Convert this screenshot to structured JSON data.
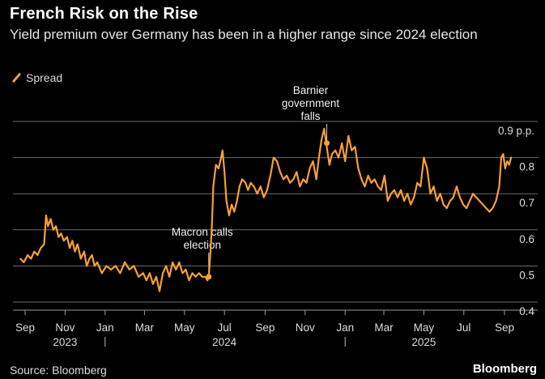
{
  "header": {
    "title": "French Risk on the Rise",
    "subtitle": "Yield premium over Germany has been in a higher range since 2024 election"
  },
  "legend": {
    "label": "Spread"
  },
  "footer": {
    "source": "Source: Bloomberg",
    "brand": "Bloomberg"
  },
  "colors": {
    "series": "#f7a035",
    "background": "#000000",
    "grid": "#6b6b6b",
    "text": "#dcdcdc"
  },
  "chart_data": {
    "type": "line",
    "title": "French Risk on the Rise",
    "subtitle": "Yield premium over Germany has been in a higher range since 2024 election",
    "xlabel": "",
    "ylabel": "",
    "ylim": [
      0.4,
      0.9
    ],
    "yticks": [
      0.4,
      0.5,
      0.6,
      0.7,
      0.8,
      0.9
    ],
    "ytick_labels": [
      "0.4",
      "0.5",
      "0.6",
      "0.7",
      "0.8",
      "0.9 p.p."
    ],
    "x_ticks": [
      {
        "date": "2023-09-01",
        "label": "Sep"
      },
      {
        "date": "2023-11-01",
        "label": "Nov"
      },
      {
        "date": "2024-01-01",
        "label": "Jan"
      },
      {
        "date": "2024-03-01",
        "label": "Mar"
      },
      {
        "date": "2024-05-01",
        "label": "May"
      },
      {
        "date": "2024-07-01",
        "label": "Jul"
      },
      {
        "date": "2024-09-01",
        "label": "Sep"
      },
      {
        "date": "2024-11-01",
        "label": "Nov"
      },
      {
        "date": "2025-01-01",
        "label": "Jan"
      },
      {
        "date": "2025-03-01",
        "label": "Mar"
      },
      {
        "date": "2025-05-01",
        "label": "May"
      },
      {
        "date": "2025-07-01",
        "label": "Jul"
      },
      {
        "date": "2025-09-01",
        "label": "Sep"
      }
    ],
    "year_labels": [
      {
        "date": "2023-11-01",
        "label": "2023"
      },
      {
        "date": "2024-07-01",
        "label": "2024"
      },
      {
        "date": "2025-05-01",
        "label": "2025"
      }
    ],
    "year_separators": [
      "2024-01-01",
      "2025-01-01"
    ],
    "grid": true,
    "legend_position": "top-left",
    "annotations": [
      {
        "lines": [
          "Macron calls",
          "election"
        ],
        "date": "2024-06-07",
        "value": 0.47
      },
      {
        "lines": [
          "Barnier",
          "government",
          "falls"
        ],
        "date": "2024-12-04",
        "value": 0.84
      }
    ],
    "series": [
      {
        "name": "Spread",
        "x": [
          "2023-08-25",
          "2023-08-30",
          "2023-09-05",
          "2023-09-10",
          "2023-09-15",
          "2023-09-20",
          "2023-09-25",
          "2023-09-30",
          "2023-10-03",
          "2023-10-06",
          "2023-10-10",
          "2023-10-14",
          "2023-10-18",
          "2023-10-22",
          "2023-10-26",
          "2023-10-30",
          "2023-11-04",
          "2023-11-08",
          "2023-11-12",
          "2023-11-16",
          "2023-11-20",
          "2023-11-25",
          "2023-11-30",
          "2023-12-04",
          "2023-12-08",
          "2023-12-12",
          "2023-12-16",
          "2023-12-20",
          "2023-12-27",
          "2024-01-03",
          "2024-01-10",
          "2024-01-17",
          "2024-01-24",
          "2024-01-31",
          "2024-02-07",
          "2024-02-14",
          "2024-02-21",
          "2024-02-28",
          "2024-03-04",
          "2024-03-09",
          "2024-03-14",
          "2024-03-19",
          "2024-03-24",
          "2024-03-29",
          "2024-04-03",
          "2024-04-08",
          "2024-04-13",
          "2024-04-18",
          "2024-04-23",
          "2024-04-28",
          "2024-05-03",
          "2024-05-08",
          "2024-05-13",
          "2024-05-18",
          "2024-05-23",
          "2024-05-28",
          "2024-06-02",
          "2024-06-05",
          "2024-06-07",
          "2024-06-10",
          "2024-06-12",
          "2024-06-14",
          "2024-06-18",
          "2024-06-22",
          "2024-06-26",
          "2024-06-28",
          "2024-07-01",
          "2024-07-04",
          "2024-07-08",
          "2024-07-12",
          "2024-07-16",
          "2024-07-20",
          "2024-07-24",
          "2024-07-28",
          "2024-08-02",
          "2024-08-06",
          "2024-08-10",
          "2024-08-15",
          "2024-08-20",
          "2024-08-25",
          "2024-08-30",
          "2024-09-04",
          "2024-09-09",
          "2024-09-14",
          "2024-09-19",
          "2024-09-24",
          "2024-09-29",
          "2024-10-04",
          "2024-10-09",
          "2024-10-14",
          "2024-10-19",
          "2024-10-24",
          "2024-10-29",
          "2024-11-03",
          "2024-11-08",
          "2024-11-13",
          "2024-11-18",
          "2024-11-22",
          "2024-11-26",
          "2024-11-30",
          "2024-12-04",
          "2024-12-08",
          "2024-12-12",
          "2024-12-17",
          "2024-12-22",
          "2024-12-27",
          "2025-01-01",
          "2025-01-06",
          "2025-01-11",
          "2025-01-16",
          "2025-01-21",
          "2025-01-26",
          "2025-01-31",
          "2025-02-05",
          "2025-02-10",
          "2025-02-15",
          "2025-02-20",
          "2025-02-25",
          "2025-03-02",
          "2025-03-07",
          "2025-03-12",
          "2025-03-17",
          "2025-03-22",
          "2025-03-27",
          "2025-04-01",
          "2025-04-06",
          "2025-04-11",
          "2025-04-16",
          "2025-04-21",
          "2025-04-26",
          "2025-05-01",
          "2025-05-06",
          "2025-05-11",
          "2025-05-16",
          "2025-05-21",
          "2025-05-26",
          "2025-05-31",
          "2025-06-05",
          "2025-06-10",
          "2025-06-15",
          "2025-06-20",
          "2025-06-25",
          "2025-06-30",
          "2025-07-05",
          "2025-07-10",
          "2025-07-15",
          "2025-07-20",
          "2025-07-25",
          "2025-07-30",
          "2025-08-04",
          "2025-08-09",
          "2025-08-14",
          "2025-08-19",
          "2025-08-24",
          "2025-08-27",
          "2025-08-30",
          "2025-09-02",
          "2025-09-05",
          "2025-09-08",
          "2025-09-11"
        ],
        "values": [
          0.52,
          0.51,
          0.53,
          0.52,
          0.54,
          0.53,
          0.55,
          0.56,
          0.64,
          0.61,
          0.63,
          0.6,
          0.61,
          0.58,
          0.59,
          0.57,
          0.58,
          0.55,
          0.57,
          0.54,
          0.56,
          0.52,
          0.54,
          0.5,
          0.52,
          0.53,
          0.5,
          0.51,
          0.48,
          0.5,
          0.49,
          0.5,
          0.48,
          0.51,
          0.49,
          0.5,
          0.47,
          0.48,
          0.46,
          0.48,
          0.45,
          0.47,
          0.43,
          0.48,
          0.5,
          0.47,
          0.51,
          0.49,
          0.51,
          0.48,
          0.49,
          0.46,
          0.48,
          0.47,
          0.48,
          0.47,
          0.47,
          0.46,
          0.47,
          0.55,
          0.62,
          0.72,
          0.78,
          0.77,
          0.8,
          0.82,
          0.76,
          0.68,
          0.64,
          0.67,
          0.65,
          0.68,
          0.72,
          0.74,
          0.73,
          0.71,
          0.73,
          0.72,
          0.7,
          0.72,
          0.69,
          0.71,
          0.75,
          0.8,
          0.79,
          0.76,
          0.74,
          0.75,
          0.73,
          0.74,
          0.76,
          0.72,
          0.74,
          0.73,
          0.77,
          0.79,
          0.74,
          0.8,
          0.85,
          0.88,
          0.83,
          0.78,
          0.81,
          0.82,
          0.8,
          0.84,
          0.79,
          0.86,
          0.82,
          0.83,
          0.77,
          0.74,
          0.72,
          0.75,
          0.73,
          0.74,
          0.72,
          0.71,
          0.75,
          0.68,
          0.7,
          0.71,
          0.69,
          0.71,
          0.68,
          0.7,
          0.67,
          0.69,
          0.73,
          0.72,
          0.8,
          0.77,
          0.7,
          0.72,
          0.68,
          0.7,
          0.67,
          0.66,
          0.68,
          0.69,
          0.72,
          0.69,
          0.67,
          0.66,
          0.68,
          0.7,
          0.69,
          0.68,
          0.67,
          0.66,
          0.65,
          0.66,
          0.68,
          0.72,
          0.8,
          0.81,
          0.77,
          0.79,
          0.78,
          0.8
        ]
      }
    ]
  }
}
